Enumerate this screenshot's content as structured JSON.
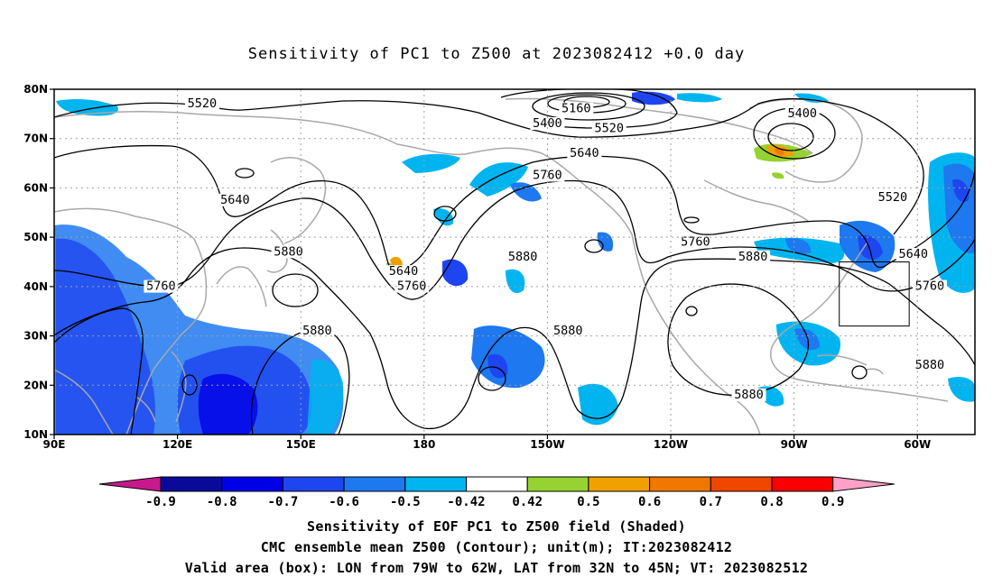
{
  "title": "Sensitivity of PC1 to Z500 at 2023082412 +0.0 day",
  "map": {
    "lon_range": [
      90,
      314
    ],
    "lat_range": [
      10,
      80
    ],
    "lat_ticks": [
      {
        "value": 80,
        "label": "80N"
      },
      {
        "value": 70,
        "label": "70N"
      },
      {
        "value": 60,
        "label": "60N"
      },
      {
        "value": 50,
        "label": "50N"
      },
      {
        "value": 40,
        "label": "40N"
      },
      {
        "value": 30,
        "label": "30N"
      },
      {
        "value": 20,
        "label": "20N"
      },
      {
        "value": 10,
        "label": "10N"
      }
    ],
    "lon_ticks": [
      {
        "value": 90,
        "label": "90E"
      },
      {
        "value": 120,
        "label": "120E"
      },
      {
        "value": 150,
        "label": "150E"
      },
      {
        "value": 180,
        "label": "180"
      },
      {
        "value": 210,
        "label": "150W"
      },
      {
        "value": 240,
        "label": "120W"
      },
      {
        "value": 270,
        "label": "90W"
      },
      {
        "value": 300,
        "label": "60W"
      }
    ],
    "grid": "dotted",
    "contour_labels": [
      {
        "text": "5520",
        "lon": 126,
        "lat": 76.5
      },
      {
        "text": "5160",
        "lon": 217,
        "lat": 75.5
      },
      {
        "text": "5400",
        "lon": 210,
        "lat": 72.5
      },
      {
        "text": "5520",
        "lon": 225,
        "lat": 71.5
      },
      {
        "text": "5400",
        "lon": 272,
        "lat": 74.5
      },
      {
        "text": "5640",
        "lon": 219,
        "lat": 66.5
      },
      {
        "text": "5760",
        "lon": 210,
        "lat": 62.0
      },
      {
        "text": "5640",
        "lon": 134,
        "lat": 57.0
      },
      {
        "text": "5520",
        "lon": 294,
        "lat": 57.5
      },
      {
        "text": "5880",
        "lon": 147,
        "lat": 46.5
      },
      {
        "text": "5640",
        "lon": 175,
        "lat": 42.5
      },
      {
        "text": "5760",
        "lon": 177,
        "lat": 39.5
      },
      {
        "text": "5760",
        "lon": 116,
        "lat": 39.5
      },
      {
        "text": "5880",
        "lon": 204,
        "lat": 45.5
      },
      {
        "text": "5760",
        "lon": 246,
        "lat": 48.5
      },
      {
        "text": "5880",
        "lon": 260,
        "lat": 45.5
      },
      {
        "text": "5640",
        "lon": 299,
        "lat": 46.0
      },
      {
        "text": "5760",
        "lon": 303,
        "lat": 39.5
      },
      {
        "text": "5880",
        "lon": 154,
        "lat": 30.5
      },
      {
        "text": "5880",
        "lon": 215,
        "lat": 30.5
      },
      {
        "text": "5880",
        "lon": 303,
        "lat": 23.5
      },
      {
        "text": "5880",
        "lon": 259,
        "lat": 17.5
      }
    ],
    "valid_box": {
      "lon_west": 79,
      "lon_east": 62,
      "lat_south": 32,
      "lat_north": 45
    }
  },
  "colorbar": {
    "labels": [
      "-0.9",
      "-0.8",
      "-0.7",
      "-0.6",
      "-0.5",
      "-0.42",
      "0.42",
      "0.5",
      "0.6",
      "0.7",
      "0.8",
      "0.9"
    ],
    "colors": {
      "left_arrow": "#c8188c",
      "bins": [
        "#0a0a9a",
        "#0000e6",
        "#1e46f0",
        "#1e78f0",
        "#00b4f0",
        "#ffffff",
        "#96d232",
        "#f0a000",
        "#f07800",
        "#f04600",
        "#fa0000"
      ],
      "right_arrow": "#ffa0c8"
    }
  },
  "captions": [
    "Sensitivity of EOF PC1 to Z500 field (Shaded)",
    "CMC ensemble mean Z500 (Contour); unit(m); IT:2023082412",
    "Valid area (box): LON from 79W to 62W, LAT from 32N to 45N; VT: 2023082512"
  ]
}
